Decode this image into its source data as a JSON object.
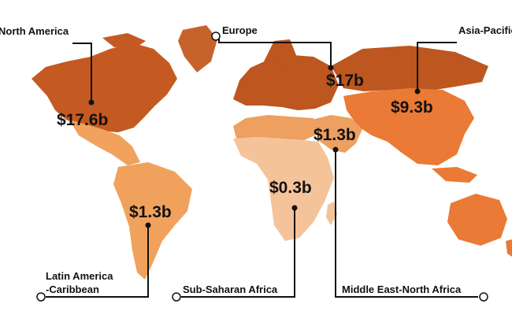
{
  "colors": {
    "north_america": "#c45a22",
    "europe": "#bd561f",
    "asia_pacific": "#ea7a36",
    "latin_america": "#f0a25c",
    "sub_saharan_africa": "#f5c39a",
    "mena": "#eda060",
    "greenland": "#c6632b",
    "leader_line": "#111111"
  },
  "regions": [
    {
      "key": "north_america",
      "name": "North America",
      "value": "$17.6b"
    },
    {
      "key": "europe",
      "name": "Europe",
      "value": "$17b"
    },
    {
      "key": "asia_pacific",
      "name": "Asia-Pacific",
      "value": "$9.3b"
    },
    {
      "key": "mena",
      "name": "Middle East-North Africa",
      "value": "$1.3b"
    },
    {
      "key": "sub_saharan_africa",
      "name": "Sub-Saharan Africa",
      "value": "$0.3b"
    },
    {
      "key": "latin_america",
      "name_line1": "Latin America",
      "name_line2": "-Caribbean",
      "value": "$1.3b"
    }
  ]
}
